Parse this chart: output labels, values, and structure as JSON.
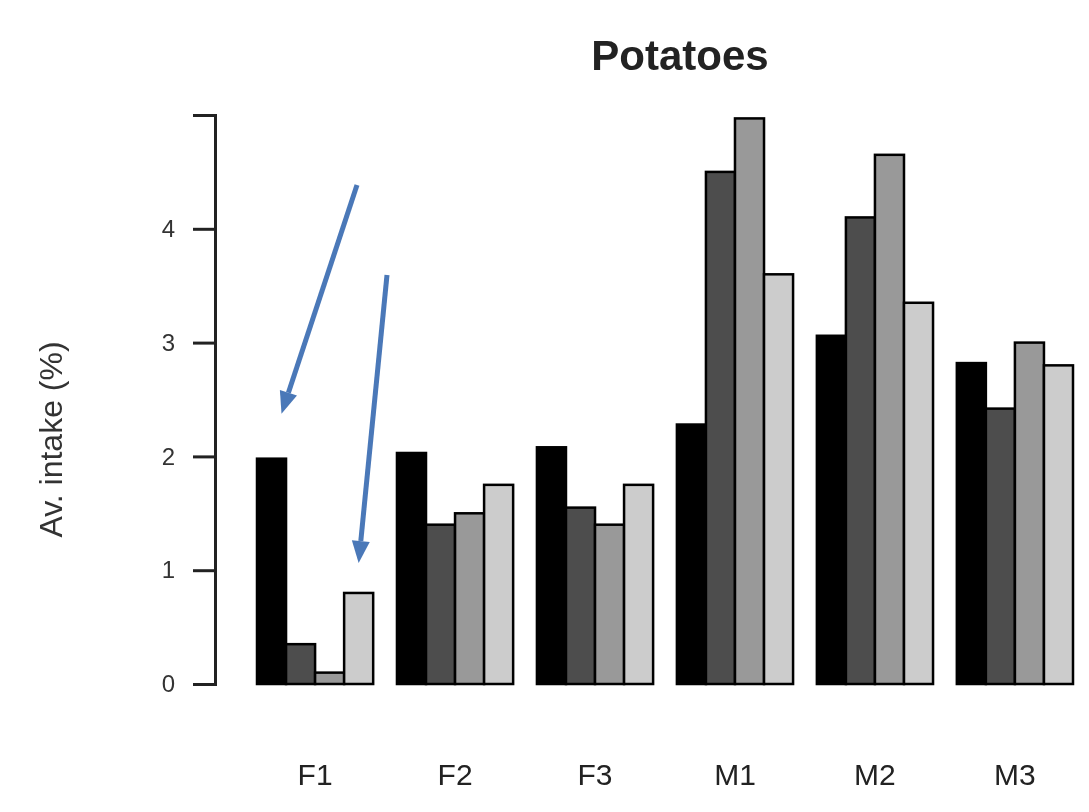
{
  "chart_data": {
    "type": "bar",
    "title": "Potatoes",
    "ylabel": "Av. intake (%)",
    "categories": [
      "F1",
      "F2",
      "F3",
      "M1",
      "M2",
      "M3"
    ],
    "series": [
      {
        "color": "#000000",
        "values": [
          1.98,
          2.03,
          2.08,
          2.28,
          3.06,
          2.82
        ]
      },
      {
        "color": "#4d4d4d",
        "values": [
          0.35,
          1.4,
          1.55,
          4.5,
          4.1,
          2.42
        ]
      },
      {
        "color": "#999999",
        "values": [
          0.1,
          1.5,
          1.4,
          4.97,
          4.65,
          3.0
        ]
      },
      {
        "color": "#cccccc",
        "values": [
          0.8,
          1.75,
          1.75,
          3.6,
          3.35,
          2.8
        ]
      }
    ],
    "ylim": [
      0,
      5
    ],
    "yticks": [
      0,
      1,
      2,
      3,
      4
    ],
    "grid": false
  }
}
